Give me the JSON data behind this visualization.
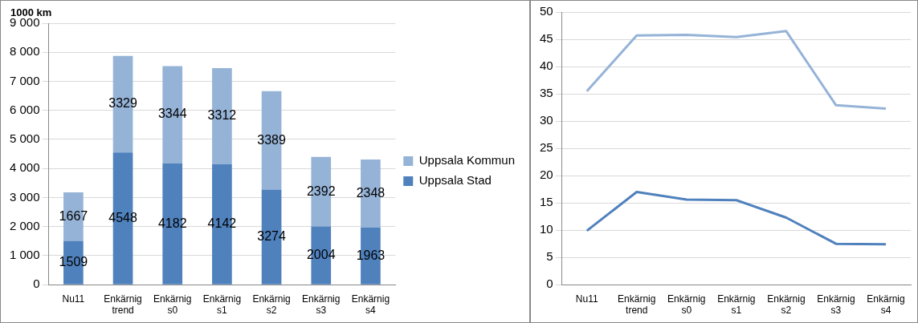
{
  "chart_data": [
    {
      "type": "bar",
      "ylabel": "1000 km",
      "categories": [
        "Nu11",
        "Enkärnig trend",
        "Enkärnig s0",
        "Enkärnig s1",
        "Enkärnig s2",
        "Enkärnig s3",
        "Enkärnig s4"
      ],
      "series": [
        {
          "name": "Uppsala Stad",
          "color": "#4f81bd",
          "values": [
            1509,
            4548,
            4182,
            4142,
            3274,
            2004,
            1963
          ]
        },
        {
          "name": "Uppsala Kommun",
          "color": "#95b3d7",
          "values": [
            1667,
            3329,
            3344,
            3312,
            3389,
            2392,
            2348
          ]
        }
      ],
      "stacked": true,
      "data_labels": true,
      "legend": "right",
      "grid": "y",
      "ylim": [
        0,
        9000
      ],
      "yticks": [
        {
          "value": 0,
          "label": "0"
        },
        {
          "value": 1000,
          "label": "1 000"
        },
        {
          "value": 2000,
          "label": "2 000"
        },
        {
          "value": 3000,
          "label": "3 000"
        },
        {
          "value": 4000,
          "label": "4 000"
        },
        {
          "value": 5000,
          "label": "5 000"
        },
        {
          "value": 6000,
          "label": "6 000"
        },
        {
          "value": 7000,
          "label": "7 000"
        },
        {
          "value": 8000,
          "label": "8 000"
        },
        {
          "value": 9000,
          "label": "9 000"
        }
      ]
    },
    {
      "type": "line",
      "categories": [
        "Nu11",
        "Enkärnig trend",
        "Enkärnig s0",
        "Enkärnig s1",
        "Enkärnig s2",
        "Enkärnig s3",
        "Enkärnig s4"
      ],
      "series": [
        {
          "color": "#95b3d7",
          "values": [
            35.5,
            45.7,
            45.8,
            45.4,
            46.5,
            32.9,
            32.3
          ]
        },
        {
          "color": "#4f81bd",
          "values": [
            9.9,
            17.0,
            15.6,
            15.5,
            12.3,
            7.5,
            7.4
          ]
        }
      ],
      "marker": "none",
      "grid": "y",
      "ylim": [
        0,
        50
      ],
      "yticks": [
        0,
        5,
        10,
        15,
        20,
        25,
        30,
        35,
        40,
        45,
        50
      ]
    }
  ]
}
